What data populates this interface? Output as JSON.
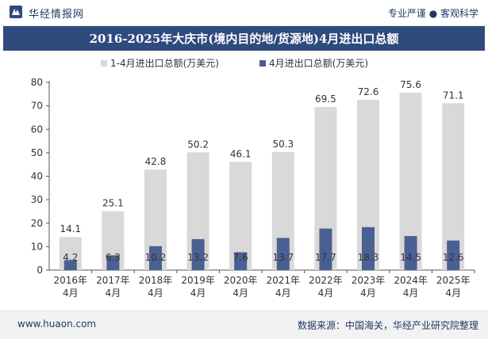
{
  "header": {
    "brand": "华经情报网",
    "tagline": "专业严谨 ● 客观科学"
  },
  "footer": {
    "site": "www.huaon.com",
    "source": "数据来源：中国海关，华经产业研究院整理"
  },
  "colors": {
    "series1": "#d9d9d9",
    "series2": "#4a5f92",
    "title_bg": "#2f4a7d",
    "title_text": "#ffffff"
  },
  "chart_data": {
    "type": "bar",
    "title": "2016-2025年大庆市(境内目的地/货源地)4月进出口总额",
    "xlabel": "",
    "ylabel": "",
    "ylim": [
      0,
      80
    ],
    "yticks": [
      0,
      10,
      20,
      30,
      40,
      50,
      60,
      70,
      80
    ],
    "grid": false,
    "legend_position": "top-center",
    "categories": [
      "2016年\n4月",
      "2017年\n4月",
      "2018年\n4月",
      "2019年\n4月",
      "2020年\n4月",
      "2021年\n4月",
      "2022年\n4月",
      "2023年\n4月",
      "2024年\n4月",
      "2025年\n4月"
    ],
    "series": [
      {
        "name": "1-4月进出口总额(万美元)",
        "values": [
          14.1,
          25.1,
          42.8,
          50.2,
          46.1,
          50.3,
          69.5,
          72.6,
          75.6,
          71.1
        ]
      },
      {
        "name": "4月进出口总额(万美元)",
        "values": [
          4.2,
          6.3,
          10.2,
          13.2,
          7.6,
          13.7,
          17.7,
          18.3,
          14.5,
          12.6
        ]
      }
    ]
  }
}
